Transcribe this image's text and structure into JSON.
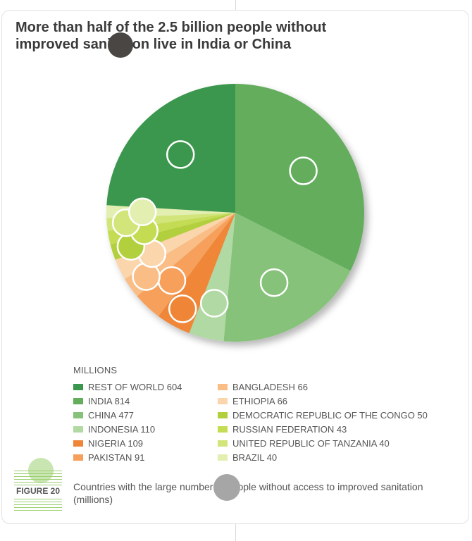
{
  "chart_data": {
    "type": "pie",
    "title": "More than half of the 2.5 billion people without improved sanitation live in India or China",
    "title_lines": [
      "More than half of the 2.5 billion people without",
      "improved sanitation live in India or China"
    ],
    "legend_title": "MILLIONS",
    "legend_placement": "bottom",
    "slices": [
      {
        "label": "REST OF WORLD 604",
        "value": 604,
        "color": "#3a974e"
      },
      {
        "label": "INDIA 814",
        "value": 814,
        "color": "#63ad5d"
      },
      {
        "label": "CHINA 477",
        "value": 477,
        "color": "#86c279"
      },
      {
        "label": "INDONESIA 110",
        "value": 110,
        "color": "#b1d9a4"
      },
      {
        "label": "NIGERIA 109",
        "value": 109,
        "color": "#ef8637"
      },
      {
        "label": "PAKISTAN 91",
        "value": 91,
        "color": "#f6a05c"
      },
      {
        "label": "BANGLADESH 66",
        "value": 66,
        "color": "#f9bd85"
      },
      {
        "label": "ETHIOPIA 66",
        "value": 66,
        "color": "#fbd6ad"
      },
      {
        "label": "DEMOCRATIC REPUBLIC OF THE CONGO 50",
        "value": 50,
        "color": "#b2cf3d"
      },
      {
        "label": "RUSSIAN FEDERATION 43",
        "value": 43,
        "color": "#c3dc52"
      },
      {
        "label": "UNITED REPUBLIC OF TANZANIA 40",
        "value": 40,
        "color": "#d2e57a"
      },
      {
        "label": "BRAZIL 40",
        "value": 40,
        "color": "#e2efb1"
      }
    ]
  },
  "figure": {
    "label": "FIGURE 20"
  },
  "caption": "Countries with the large number of people without access to improved sanitation (millions)"
}
